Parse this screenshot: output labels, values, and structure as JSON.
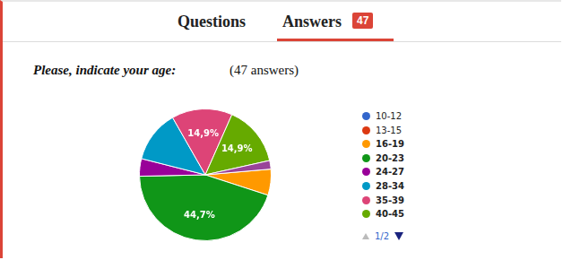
{
  "page": {
    "tabs": [
      "Questions",
      "Answers"
    ],
    "answers_badge": "47",
    "question": "Please, indicate your age:",
    "answer_count": "(47 answers)",
    "legend_page": "1/2"
  },
  "chart_data": {
    "type": "pie",
    "categories": [
      "10-12",
      "13-15",
      "16-19",
      "20-23",
      "24-27",
      "28-34",
      "35-39",
      "40-45",
      null
    ],
    "values": [
      0,
      0,
      6.4,
      44.7,
      4.3,
      12.8,
      14.9,
      14.9,
      2.1
    ],
    "value_labels": [
      null,
      null,
      null,
      "44,7%",
      null,
      null,
      "14,9%",
      "14,9%",
      null
    ],
    "colors": [
      "#3366cc",
      "#dc3912",
      "#ff9900",
      "#109618",
      "#990099",
      "#0099c6",
      "#dd4477",
      "#66aa00",
      "#994499"
    ],
    "data_labels": true,
    "legend": "right"
  }
}
